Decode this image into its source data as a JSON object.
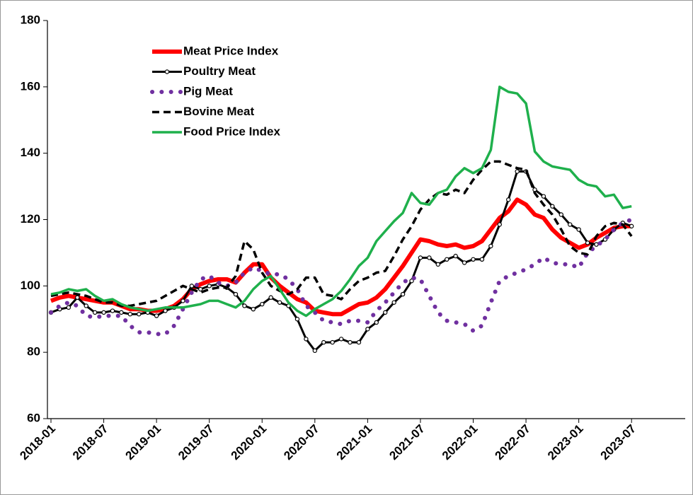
{
  "chart_data": {
    "type": "line",
    "categories": [
      "2018-01",
      null,
      null,
      null,
      null,
      null,
      "2018-07",
      null,
      null,
      null,
      null,
      null,
      "2019-01",
      null,
      null,
      null,
      null,
      null,
      "2019-07",
      null,
      null,
      null,
      null,
      null,
      "2020-01",
      null,
      null,
      null,
      null,
      null,
      "2020-07",
      null,
      null,
      null,
      null,
      null,
      "2021-01",
      null,
      null,
      null,
      null,
      null,
      "2021-07",
      null,
      null,
      null,
      null,
      null,
      "2022-01",
      null,
      null,
      null,
      null,
      null,
      "2022-07",
      null,
      null,
      null,
      null,
      null,
      "2023-01",
      null,
      null,
      null,
      null,
      null,
      "2023-07",
      null,
      null,
      null,
      null,
      null,
      null
    ],
    "ylim": [
      60,
      180
    ],
    "yticks": [
      60,
      80,
      100,
      120,
      140,
      160,
      180
    ],
    "grid": false,
    "legend": "upper left",
    "series": [
      {
        "name": "Meat Price Index",
        "color": "#ff0000",
        "style": "solid",
        "width": 6,
        "markers": false,
        "values": [
          95.5,
          96.5,
          97,
          96.5,
          96,
          95.5,
          95,
          95,
          94,
          93,
          93,
          92.5,
          92.5,
          93,
          94,
          96,
          99,
          100.5,
          101.5,
          102,
          102,
          101,
          104,
          106.5,
          106.5,
          102.5,
          100,
          98,
          96,
          95,
          92.5,
          92,
          91.5,
          91.5,
          93,
          94.5,
          95,
          96.5,
          99,
          102.5,
          106,
          110,
          114,
          113.5,
          112.5,
          112,
          112.5,
          111.5,
          112,
          113.5,
          117,
          120.5,
          122.5,
          126,
          124.5,
          121.5,
          120.5,
          117,
          114.5,
          113,
          111.5,
          112.5,
          114.5,
          116,
          117.5,
          118,
          118,
          null,
          null,
          null,
          null,
          null,
          null
        ]
      },
      {
        "name": "Poultry Meat",
        "color": "#000000",
        "style": "solid",
        "width": 3,
        "markers": true,
        "values": [
          92,
          93,
          93.5,
          96.5,
          94,
          92,
          92,
          92.5,
          92,
          91.5,
          91.5,
          92,
          91,
          92.5,
          93.5,
          95.5,
          100,
          99,
          100,
          100.5,
          99.5,
          97.5,
          94,
          93,
          94.5,
          96.5,
          95,
          94,
          90,
          84,
          80.5,
          83,
          83,
          84,
          83,
          83,
          87,
          89,
          92,
          95,
          97.5,
          101.5,
          108.5,
          108.5,
          106.5,
          108,
          109,
          107,
          108,
          108,
          112,
          118.5,
          126,
          134.5,
          134.5,
          129,
          127,
          124,
          121.5,
          118.5,
          117,
          113,
          112.5,
          114,
          117,
          119,
          118,
          null,
          null,
          null,
          null,
          null,
          null
        ]
      },
      {
        "name": "Pig Meat",
        "color": "#7030a0",
        "style": "dotted",
        "width": 6,
        "markers": false,
        "values": [
          92,
          94,
          95,
          94,
          91,
          90.5,
          91,
          91,
          91,
          88,
          86,
          86,
          85.5,
          85.5,
          88,
          93,
          98,
          102,
          103,
          101,
          100,
          101,
          104,
          105.5,
          104.5,
          103.5,
          103.5,
          102,
          99,
          94,
          92,
          89.5,
          89,
          88.5,
          89.5,
          89.5,
          89,
          92.5,
          95,
          98,
          101,
          102.5,
          102,
          97,
          92,
          89.5,
          89,
          88.5,
          86.5,
          88,
          95,
          101.5,
          103,
          104,
          105,
          106.5,
          108.5,
          107,
          106.5,
          106.5,
          105.5,
          110,
          112,
          114,
          117,
          119,
          120,
          null,
          null,
          null,
          null,
          null,
          null
        ]
      },
      {
        "name": "Bovine Meat",
        "color": "#000000",
        "style": "dashed",
        "width": 3.5,
        "markers": false,
        "values": [
          97,
          97.5,
          98,
          97.5,
          97,
          96,
          95,
          95,
          94,
          94,
          94.5,
          95,
          95.5,
          97,
          98.5,
          100,
          99,
          98,
          99,
          99.5,
          99.5,
          103,
          113.5,
          111,
          104,
          100,
          98.5,
          97.5,
          99,
          102.5,
          102.5,
          97.5,
          97,
          96,
          99,
          101.5,
          102.5,
          104,
          104.5,
          109,
          114,
          118,
          123,
          126,
          128,
          127.5,
          129,
          128,
          132,
          135,
          137.5,
          137.5,
          136.5,
          135.5,
          135,
          128,
          124.5,
          121.5,
          117,
          112,
          110,
          109.5,
          115,
          118,
          119,
          118.5,
          115,
          null,
          null,
          null,
          null,
          null,
          null
        ]
      },
      {
        "name": "Food Price Index",
        "color": "#1fb04c",
        "style": "solid",
        "width": 3.5,
        "markers": false,
        "values": [
          97.5,
          98,
          99,
          98.5,
          99,
          97,
          95.5,
          96,
          94.5,
          93.5,
          93,
          92.5,
          93,
          93.5,
          93.5,
          93.5,
          94,
          94.5,
          95.5,
          95.5,
          94.5,
          93.5,
          95.5,
          99,
          101.5,
          103,
          99,
          95,
          92.5,
          91,
          93,
          94.5,
          96,
          98.5,
          102,
          106,
          108.5,
          113.5,
          116.5,
          119.5,
          122,
          128,
          125,
          124.5,
          128,
          129,
          133,
          135.5,
          134,
          135.5,
          141,
          160,
          158.5,
          158,
          155,
          140.5,
          137.5,
          136,
          135.5,
          135,
          132,
          130.5,
          130,
          127,
          127.5,
          123.5,
          124,
          null,
          null,
          null,
          null,
          null,
          null
        ]
      }
    ]
  }
}
